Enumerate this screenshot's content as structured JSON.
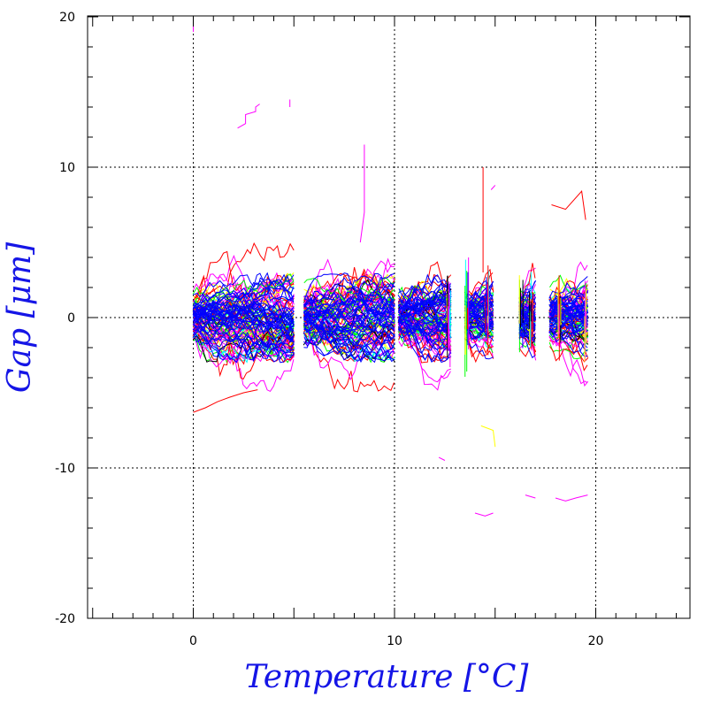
{
  "chart_data": {
    "type": "line",
    "title": "",
    "xlabel": "Temperature [°C]",
    "ylabel": "Gap [μm]",
    "xlim": [
      -5.2,
      25
    ],
    "ylim": [
      -20,
      20
    ],
    "x_ticks": [
      0,
      10,
      20
    ],
    "y_ticks": [
      -20,
      -10,
      0,
      10,
      20
    ],
    "x_minor_step": 1,
    "y_minor_step": 2,
    "grid": "dotted at major ticks",
    "legend": "none",
    "series_colors": [
      "#0000ff",
      "#ff00ff",
      "#ff0000",
      "#00ffff",
      "#00ff00",
      "#ffff00",
      "#000000"
    ],
    "series_count": 120,
    "temperature_segments": [
      {
        "x_start": 0.0,
        "x_end": 5.0
      },
      {
        "x_start": 5.5,
        "x_end": 10.0
      },
      {
        "x_start": 10.2,
        "x_end": 12.8
      },
      {
        "x_start": 13.5,
        "x_end": 14.9
      },
      {
        "x_start": 16.2,
        "x_end": 17.0
      },
      {
        "x_start": 17.7,
        "x_end": 19.6
      }
    ],
    "core_band": [
      -2.5,
      2.5
    ],
    "outer_band": [
      -5,
      5
    ],
    "outliers": [
      {
        "x": [
          2.2,
          2.6,
          2.6,
          3.1,
          3.1,
          3.3
        ],
        "y": [
          12.6,
          12.9,
          13.5,
          13.7,
          14.0,
          14.2
        ],
        "color": "#ff00ff"
      },
      {
        "x": [
          4.8,
          4.8
        ],
        "y": [
          14.5,
          14.0
        ],
        "color": "#ff00ff"
      },
      {
        "x": [
          8.5,
          8.5,
          8.5,
          8.3
        ],
        "y": [
          11.5,
          9.5,
          7.0,
          5.0
        ],
        "color": "#ff00ff"
      },
      {
        "x": [
          0.0,
          0.0
        ],
        "y": [
          20.0,
          19.0
        ],
        "color": "#ff00ff"
      },
      {
        "x": [
          0.0,
          0.6,
          1.2,
          1.8,
          2.5,
          3.2
        ],
        "y": [
          -6.3,
          -6.0,
          -5.6,
          -5.3,
          -5.0,
          -4.8
        ],
        "color": "#ff0000"
      },
      {
        "x": [
          12.2,
          12.5
        ],
        "y": [
          -9.3,
          -9.5
        ],
        "color": "#ff00ff"
      },
      {
        "x": [
          14.0,
          14.5,
          14.9
        ],
        "y": [
          -13.0,
          -13.2,
          -13.0
        ],
        "color": "#ff00ff"
      },
      {
        "x": [
          14.3,
          14.9,
          15.0
        ],
        "y": [
          -7.2,
          -7.5,
          -8.6
        ],
        "color": "#ffff00"
      },
      {
        "x": [
          16.5,
          17.0
        ],
        "y": [
          -11.8,
          -12.0
        ],
        "color": "#ff00ff"
      },
      {
        "x": [
          18.0,
          18.5,
          19.0,
          19.6
        ],
        "y": [
          -12.0,
          -12.2,
          -12.0,
          -11.8
        ],
        "color": "#ff00ff"
      },
      {
        "x": [
          17.8,
          18.5,
          19.3,
          19.5
        ],
        "y": [
          7.5,
          7.2,
          8.4,
          6.5
        ],
        "color": "#ff0000"
      },
      {
        "x": [
          14.8,
          15.0
        ],
        "y": [
          8.5,
          8.8
        ],
        "color": "#ff00ff"
      },
      {
        "x": [
          14.4,
          14.4
        ],
        "y": [
          10.0,
          3.0
        ],
        "color": "#ff0000"
      }
    ]
  }
}
